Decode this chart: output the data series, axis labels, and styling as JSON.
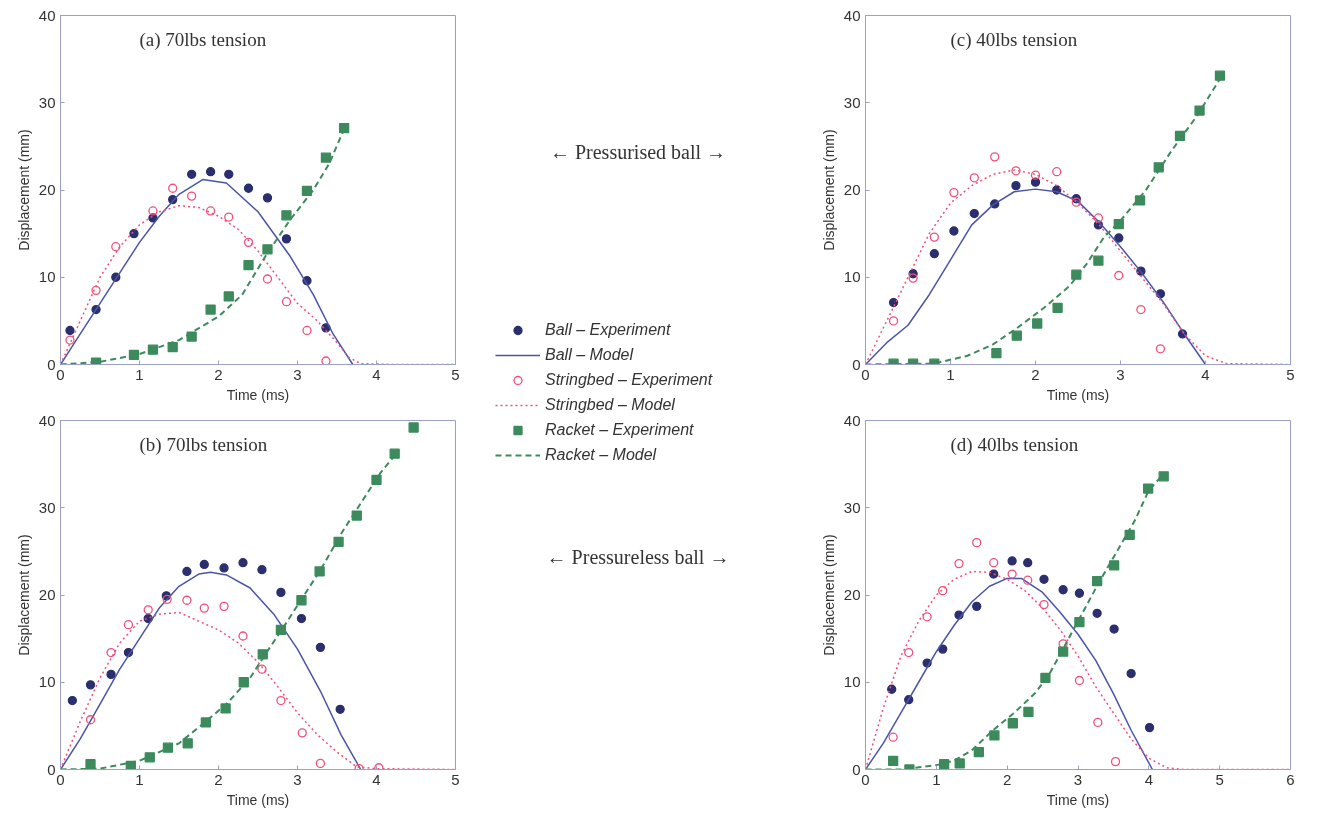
{
  "chart_data": [
    {
      "type": "scatter",
      "title": "(a)  70lbs tension",
      "xlabel": "Time (ms)",
      "ylabel": "Displacement (mm)",
      "xlim": [
        0,
        5
      ],
      "ylim": [
        0,
        40
      ],
      "xticks": [
        0,
        1,
        2,
        3,
        4,
        5
      ],
      "yticks": [
        0,
        10,
        20,
        30,
        40
      ],
      "legend": "right",
      "annotations": [
        "← Pressurised ball →"
      ],
      "series": [
        {
          "name": "Ball – Experiment",
          "marker": "circle",
          "color": "#2b2f6e",
          "x": [
            0.12,
            0.45,
            0.7,
            0.93,
            1.17,
            1.42,
            1.66,
            1.9,
            2.13,
            2.38,
            2.62,
            2.86,
            3.12,
            3.36
          ],
          "values": [
            3.9,
            6.3,
            10,
            15,
            16.8,
            18.9,
            21.8,
            22.1,
            21.8,
            20.2,
            19.1,
            14.4,
            9.6,
            4.2
          ]
        },
        {
          "name": "Ball – Model",
          "type": "line",
          "line_style": "solid",
          "color": "#4a55a8",
          "x": [
            0,
            0.25,
            0.5,
            0.75,
            1,
            1.25,
            1.5,
            1.8,
            2.1,
            2.5,
            2.9,
            3.2,
            3.45,
            3.7
          ],
          "values": [
            0,
            3.5,
            7,
            10.5,
            14,
            17,
            19.5,
            21.2,
            20.8,
            17.5,
            12.5,
            8,
            3.5,
            0
          ]
        },
        {
          "name": "Stringbed – Experiment",
          "marker": "circle_open",
          "color": "#f0507a",
          "x": [
            0.12,
            0.45,
            0.7,
            1.17,
            1.42,
            1.66,
            1.9,
            2.13,
            2.38,
            2.62,
            2.86,
            3.12,
            3.36
          ],
          "values": [
            2.8,
            8.5,
            13.5,
            17.6,
            20.2,
            19.3,
            17.6,
            16.9,
            14.0,
            9.8,
            7.2,
            3.9,
            0.4
          ]
        },
        {
          "name": "Stringbed – Model",
          "type": "line",
          "line_style": "dotted",
          "color": "#f0507a",
          "x": [
            0,
            0.25,
            0.5,
            0.75,
            1,
            1.25,
            1.5,
            1.75,
            2,
            2.25,
            2.5,
            2.75,
            3,
            3.25,
            3.5,
            3.65,
            3.8,
            4.2,
            5
          ],
          "values": [
            0,
            5,
            10,
            13.5,
            16,
            17.5,
            18.2,
            18,
            17,
            15.5,
            13,
            10,
            7,
            5,
            2.5,
            0.8,
            0.1,
            0,
            0
          ]
        },
        {
          "name": "Racket – Experiment",
          "marker": "square",
          "color": "#3d8a5c",
          "x": [
            0.45,
            0.93,
            1.17,
            1.42,
            1.66,
            1.9,
            2.13,
            2.38,
            2.62,
            2.86,
            3.12,
            3.36,
            3.59
          ],
          "values": [
            0.2,
            1.1,
            1.7,
            2.0,
            3.2,
            6.3,
            7.8,
            11.4,
            13.2,
            17.1,
            19.9,
            23.7,
            27.1
          ]
        },
        {
          "name": "Racket – Model",
          "type": "line",
          "line_style": "dashed",
          "color": "#3d8a5c",
          "x": [
            0,
            0.5,
            1,
            1.5,
            2,
            2.3,
            2.6,
            2.9,
            3.2,
            3.4,
            3.6
          ],
          "values": [
            0,
            0.3,
            1.2,
            2.8,
            5.5,
            8,
            12.5,
            16.5,
            20,
            23,
            27.2
          ]
        }
      ]
    },
    {
      "type": "scatter",
      "title": "(c)  40lbs tension",
      "xlabel": "Time (ms)",
      "ylabel": "Displacement (mm)",
      "xlim": [
        0,
        5
      ],
      "ylim": [
        0,
        40
      ],
      "xticks": [
        0,
        1,
        2,
        3,
        4,
        5
      ],
      "yticks": [
        0,
        10,
        20,
        30,
        40
      ],
      "series": [
        {
          "marker": "circle",
          "color": "#2b2f6e",
          "x": [
            0.33,
            0.56,
            0.81,
            1.04,
            1.28,
            1.52,
            1.77,
            2.0,
            2.25,
            2.48,
            2.74,
            2.98,
            3.24,
            3.47,
            3.73
          ],
          "values": [
            7.1,
            10.4,
            12.7,
            15.3,
            17.3,
            18.4,
            20.5,
            20.9,
            20.0,
            19.0,
            16.0,
            14.5,
            10.7,
            8.1,
            3.5
          ]
        },
        {
          "type": "line",
          "line_style": "solid",
          "color": "#4a55a8",
          "x": [
            0,
            0.25,
            0.5,
            0.75,
            1,
            1.25,
            1.5,
            1.75,
            2,
            2.25,
            2.5,
            2.75,
            3,
            3.25,
            3.5,
            3.75,
            4
          ],
          "values": [
            0,
            2.5,
            4.5,
            8,
            12,
            16,
            18.3,
            19.8,
            20.1,
            19.8,
            18.7,
            16.3,
            13.5,
            10.5,
            7.2,
            3.5,
            0
          ]
        },
        {
          "marker": "circle_open",
          "color": "#f0507a",
          "x": [
            0.33,
            0.56,
            0.81,
            1.04,
            1.28,
            1.52,
            1.77,
            2.0,
            2.25,
            2.48,
            2.74,
            2.98,
            3.24,
            3.47
          ],
          "values": [
            5.0,
            9.9,
            14.6,
            19.7,
            21.4,
            23.8,
            22.2,
            21.7,
            22.1,
            18.6,
            16.8,
            10.2,
            6.3,
            1.8
          ]
        },
        {
          "type": "line",
          "line_style": "dotted",
          "color": "#f0507a",
          "x": [
            0,
            0.25,
            0.5,
            0.75,
            1,
            1.25,
            1.5,
            1.75,
            2,
            2.25,
            2.5,
            2.75,
            3,
            3.25,
            3.5,
            3.75,
            4,
            4.25,
            5
          ],
          "values": [
            0,
            5,
            10,
            15,
            18.5,
            20.5,
            21.8,
            22.3,
            21.8,
            20.5,
            18.5,
            16,
            13,
            10,
            7,
            3.5,
            1,
            0.1,
            0
          ]
        },
        {
          "marker": "square",
          "color": "#3d8a5c",
          "x": [
            0.33,
            0.56,
            0.81,
            1.54,
            1.78,
            2.02,
            2.26,
            2.48,
            2.74,
            2.98,
            3.23,
            3.45,
            3.7,
            3.93,
            4.17
          ],
          "values": [
            0.1,
            0.1,
            0.1,
            1.3,
            3.3,
            4.7,
            6.5,
            10.3,
            11.9,
            16.1,
            18.8,
            22.6,
            26.2,
            29.1,
            33.1
          ]
        },
        {
          "type": "line",
          "line_style": "dashed",
          "color": "#3d8a5c",
          "x": [
            0,
            0.8,
            1.2,
            1.5,
            1.8,
            2.1,
            2.4,
            2.6,
            2.8,
            3,
            3.3,
            3.6,
            3.9,
            4.2
          ],
          "values": [
            0,
            0.1,
            1,
            2.3,
            4.3,
            6.5,
            9,
            11.5,
            14.5,
            16.5,
            20,
            24.5,
            28.5,
            33.2
          ]
        }
      ]
    },
    {
      "type": "scatter",
      "title": "(b)  70lbs tension",
      "xlabel": "Time (ms)",
      "ylabel": "Displacement (mm)",
      "xlim": [
        0,
        5
      ],
      "ylim": [
        0,
        40
      ],
      "xticks": [
        0,
        1,
        2,
        3,
        4,
        5
      ],
      "yticks": [
        0,
        10,
        20,
        30,
        40
      ],
      "annotations": [
        "← Pressureless ball →"
      ],
      "series": [
        {
          "marker": "circle",
          "color": "#2b2f6e",
          "x": [
            0.15,
            0.38,
            0.64,
            0.86,
            1.11,
            1.34,
            1.6,
            1.82,
            2.07,
            2.31,
            2.55,
            2.79,
            3.05,
            3.29,
            3.54
          ],
          "values": [
            7.9,
            9.7,
            10.9,
            13.4,
            17.3,
            19.9,
            22.7,
            23.5,
            23.1,
            23.7,
            22.9,
            20.3,
            17.3,
            14.0,
            6.9
          ]
        },
        {
          "type": "line",
          "line_style": "solid",
          "color": "#4a55a8",
          "x": [
            0,
            0.25,
            0.5,
            0.75,
            1,
            1.25,
            1.5,
            1.75,
            1.9,
            2.1,
            2.4,
            2.7,
            3,
            3.3,
            3.55,
            3.8
          ],
          "values": [
            0,
            3.5,
            7.5,
            11.5,
            15,
            18.5,
            21,
            22.4,
            22.6,
            22.3,
            20.8,
            17.8,
            13.8,
            8.8,
            4,
            0
          ]
        },
        {
          "marker": "circle_open",
          "color": "#f0507a",
          "x": [
            0.38,
            0.64,
            0.86,
            1.11,
            1.35,
            1.6,
            1.82,
            2.07,
            2.31,
            2.55,
            2.79,
            3.06,
            3.29,
            3.78,
            4.03
          ],
          "values": [
            5.7,
            13.4,
            16.6,
            18.3,
            19.5,
            19.4,
            18.5,
            18.7,
            15.3,
            11.5,
            7.9,
            4.2,
            0.7,
            0.1,
            0.2
          ]
        },
        {
          "type": "line",
          "line_style": "dotted",
          "color": "#f0507a",
          "x": [
            0,
            0.25,
            0.5,
            0.75,
            1,
            1.25,
            1.5,
            1.75,
            2,
            2.25,
            2.5,
            2.75,
            3,
            3.25,
            3.5,
            3.75,
            4,
            5
          ],
          "values": [
            0,
            5.5,
            10.5,
            14.5,
            17,
            17.8,
            18,
            17,
            16,
            14.5,
            12.3,
            9.5,
            6.5,
            4,
            2,
            0.3,
            0.1,
            0
          ]
        },
        {
          "marker": "square",
          "color": "#3d8a5c",
          "x": [
            0.38,
            0.89,
            1.13,
            1.36,
            1.61,
            1.84,
            2.09,
            2.32,
            2.56,
            2.79,
            3.05,
            3.28,
            3.52,
            3.75,
            4.0,
            4.23,
            4.47
          ],
          "values": [
            0.6,
            0.4,
            1.4,
            2.5,
            3.0,
            5.4,
            7.0,
            10.0,
            13.2,
            16.0,
            19.4,
            22.7,
            26.1,
            29.1,
            33.2,
            36.2,
            39.2
          ]
        },
        {
          "type": "line",
          "line_style": "dashed",
          "color": "#3d8a5c",
          "x": [
            0,
            0.5,
            1,
            1.5,
            1.8,
            2.1,
            2.4,
            2.6,
            2.8,
            3.05,
            3.3,
            3.55,
            3.8,
            4.05,
            4.25
          ],
          "values": [
            0,
            0.1,
            1,
            3,
            5.2,
            7.5,
            10.5,
            13.3,
            16,
            19.5,
            23,
            27,
            30.5,
            34,
            36.2
          ]
        }
      ]
    },
    {
      "type": "scatter",
      "title": "(d)  40lbs tension",
      "xlabel": "Time (ms)",
      "ylabel": "Displacement (mm)",
      "xlim": [
        0,
        6
      ],
      "ylim": [
        0,
        40
      ],
      "xticks": [
        0,
        1,
        2,
        3,
        4,
        5,
        6
      ],
      "yticks": [
        0,
        10,
        20,
        30,
        40
      ],
      "series": [
        {
          "marker": "circle",
          "color": "#2b2f6e",
          "x": [
            0.37,
            0.61,
            0.87,
            1.09,
            1.32,
            1.57,
            1.81,
            2.07,
            2.29,
            2.52,
            2.79,
            3.02,
            3.27,
            3.51,
            3.75,
            4.01
          ],
          "values": [
            9.2,
            8.0,
            12.2,
            13.8,
            17.7,
            18.7,
            22.4,
            23.9,
            23.7,
            21.8,
            20.6,
            20.2,
            17.9,
            16.1,
            11.0,
            4.8
          ]
        },
        {
          "type": "line",
          "line_style": "solid",
          "color": "#4a55a8",
          "x": [
            0,
            0.25,
            0.5,
            0.75,
            1,
            1.25,
            1.5,
            1.75,
            2,
            2.2,
            2.5,
            2.75,
            3,
            3.25,
            3.5,
            3.75,
            4.05
          ],
          "values": [
            0,
            3,
            6.5,
            10,
            13.5,
            16.5,
            19.2,
            21,
            21.9,
            21.9,
            20.3,
            18,
            15.5,
            12.5,
            8.7,
            4.5,
            0
          ]
        },
        {
          "marker": "circle_open",
          "color": "#f0507a",
          "x": [
            0.39,
            0.61,
            0.87,
            1.09,
            1.32,
            1.57,
            1.81,
            2.07,
            2.29,
            2.52,
            2.79,
            3.02,
            3.28,
            3.53
          ],
          "values": [
            3.7,
            13.4,
            17.5,
            20.5,
            23.6,
            26.0,
            23.7,
            22.4,
            21.7,
            18.9,
            14.4,
            10.2,
            5.4,
            0.9
          ]
        },
        {
          "type": "line",
          "line_style": "dotted",
          "color": "#f0507a",
          "x": [
            0,
            0.25,
            0.5,
            0.75,
            1,
            1.25,
            1.5,
            1.75,
            2,
            2.25,
            2.5,
            2.75,
            3,
            3.25,
            3.5,
            3.75,
            4,
            4.25,
            4.5,
            6
          ],
          "values": [
            0,
            7,
            13,
            17,
            20,
            21.8,
            22.7,
            22.6,
            21.8,
            20.5,
            18.5,
            16,
            13,
            9.5,
            6.5,
            3.5,
            1.3,
            0.2,
            0,
            0
          ]
        },
        {
          "marker": "square",
          "color": "#3d8a5c",
          "x": [
            0.39,
            0.62,
            1.11,
            1.33,
            1.6,
            1.82,
            2.08,
            2.3,
            2.54,
            2.79,
            3.02,
            3.27,
            3.51,
            3.73,
            3.99,
            4.21
          ],
          "values": [
            1.0,
            0.0,
            0.6,
            0.7,
            2.0,
            3.9,
            5.3,
            6.6,
            10.5,
            13.5,
            16.9,
            21.6,
            23.4,
            26.9,
            32.2,
            33.6
          ]
        },
        {
          "type": "line",
          "line_style": "dashed",
          "color": "#3d8a5c",
          "x": [
            0,
            0.5,
            1,
            1.25,
            1.5,
            1.8,
            2.1,
            2.4,
            2.6,
            2.8,
            3,
            3.3,
            3.55,
            3.8,
            4,
            4.2
          ],
          "values": [
            0,
            0,
            0.5,
            1,
            2.2,
            4.5,
            6.5,
            8.8,
            11,
            14,
            17,
            21.5,
            25,
            28.5,
            32,
            33.8
          ]
        }
      ]
    }
  ]
}
